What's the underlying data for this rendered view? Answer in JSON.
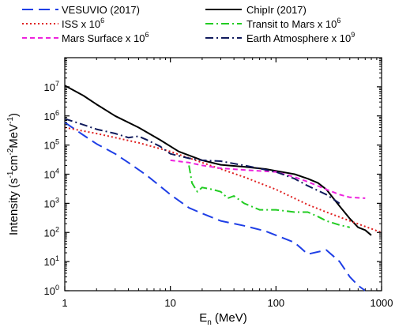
{
  "chart_data": {
    "type": "line",
    "xlabel": {
      "main": "E",
      "sub": "n",
      "unit": "(MeV)"
    },
    "ylabel": {
      "parts": [
        "Intensity (s",
        "-1",
        "cm",
        "-2",
        "MeV",
        "-1",
        ")"
      ]
    },
    "xscale": "log",
    "yscale": "log",
    "xlim": [
      1,
      1000
    ],
    "ylim": [
      1,
      100000000
    ],
    "grid": false,
    "legend_position": "top",
    "x_ticks": [
      {
        "value": 1,
        "base": "1",
        "exp": ""
      },
      {
        "value": 10,
        "base": "10",
        "exp": ""
      },
      {
        "value": 100,
        "base": "100",
        "exp": ""
      },
      {
        "value": 1000,
        "base": "1000",
        "exp": ""
      }
    ],
    "y_ticks": [
      {
        "value": 1,
        "base": "10",
        "exp": "0"
      },
      {
        "value": 10,
        "base": "10",
        "exp": "1"
      },
      {
        "value": 100,
        "base": "10",
        "exp": "2"
      },
      {
        "value": 1000,
        "base": "10",
        "exp": "3"
      },
      {
        "value": 10000,
        "base": "10",
        "exp": "4"
      },
      {
        "value": 100000,
        "base": "10",
        "exp": "5"
      },
      {
        "value": 1000000,
        "base": "10",
        "exp": "6"
      },
      {
        "value": 10000000,
        "base": "10",
        "exp": "7"
      }
    ],
    "series": [
      {
        "name": "VESUVIO (2017)",
        "label_base": "VESUVIO (2017)",
        "label_exp": "",
        "color": "#1f3fe6",
        "dash": "14,7",
        "width": 2,
        "x": [
          1,
          1.5,
          2,
          3,
          4,
          6,
          10,
          15,
          20,
          30,
          50,
          80,
          100,
          150,
          200,
          300,
          400,
          500,
          600,
          700
        ],
        "y": [
          600000,
          220000,
          110000,
          50000,
          25000,
          9000,
          2000,
          700,
          450,
          250,
          170,
          110,
          80,
          45,
          18,
          25,
          10,
          3,
          1.5,
          1
        ]
      },
      {
        "name": "ChipIr (2017)",
        "label_base": "ChipIr (2017)",
        "label_exp": "",
        "color": "#000000",
        "dash": "",
        "width": 2,
        "x": [
          1,
          1.5,
          2,
          3,
          5,
          8,
          12,
          20,
          30,
          50,
          80,
          100,
          150,
          200,
          250,
          300,
          400,
          500,
          600,
          700,
          800
        ],
        "y": [
          11000000,
          5000000,
          2500000,
          1000000,
          400000,
          150000,
          60000,
          30000,
          21000,
          18000,
          15000,
          13000,
          10000,
          7000,
          5000,
          3000,
          800,
          300,
          150,
          120,
          80
        ]
      },
      {
        "name": "ISS x 10^6",
        "label_base": "ISS x 10",
        "label_exp": "6",
        "color": "#e02020",
        "dash": "2,3",
        "width": 2,
        "x": [
          1,
          2,
          5,
          10,
          20,
          50,
          100,
          200,
          300,
          500,
          1000
        ],
        "y": [
          400000,
          250000,
          120000,
          60000,
          25000,
          8000,
          3000,
          900,
          500,
          250,
          100
        ]
      },
      {
        "name": "Transit to Mars x 10^6",
        "label_base": "Transit to Mars x 10",
        "label_exp": "6",
        "color": "#22cc22",
        "dash": "10,4,2,4",
        "width": 2,
        "x": [
          15,
          16,
          18,
          20,
          25,
          30,
          35,
          40,
          50,
          70,
          100,
          150,
          200,
          250,
          300,
          400,
          500
        ],
        "y": [
          20000,
          5000,
          2500,
          3500,
          3000,
          2500,
          1500,
          1800,
          1000,
          600,
          600,
          500,
          500,
          350,
          250,
          180,
          150
        ]
      },
      {
        "name": "Mars Surface x 10^6",
        "label_base": "Mars Surface x 10",
        "label_exp": "6",
        "color": "#ee22dd",
        "dash": "6,4",
        "width": 2,
        "x": [
          10,
          15,
          20,
          30,
          50,
          100,
          150,
          200,
          300,
          400,
          500,
          700
        ],
        "y": [
          30000,
          25000,
          20000,
          16000,
          14000,
          12000,
          8000,
          5500,
          3000,
          2000,
          1600,
          1500
        ]
      },
      {
        "name": "Earth Atmosphere x 10^9",
        "label_base": "Earth Atmosphere x 10",
        "label_exp": "9",
        "color": "#101a5c",
        "dash": "10,4,2,4",
        "width": 2,
        "x": [
          1,
          1.5,
          2,
          3,
          4,
          5,
          6,
          8,
          10,
          15,
          20,
          30,
          50,
          100,
          150,
          200,
          300,
          400
        ],
        "y": [
          800000,
          500000,
          350000,
          250000,
          180000,
          200000,
          150000,
          90000,
          50000,
          35000,
          30000,
          28000,
          20000,
          12000,
          7000,
          4000,
          2000,
          1000
        ]
      }
    ]
  }
}
